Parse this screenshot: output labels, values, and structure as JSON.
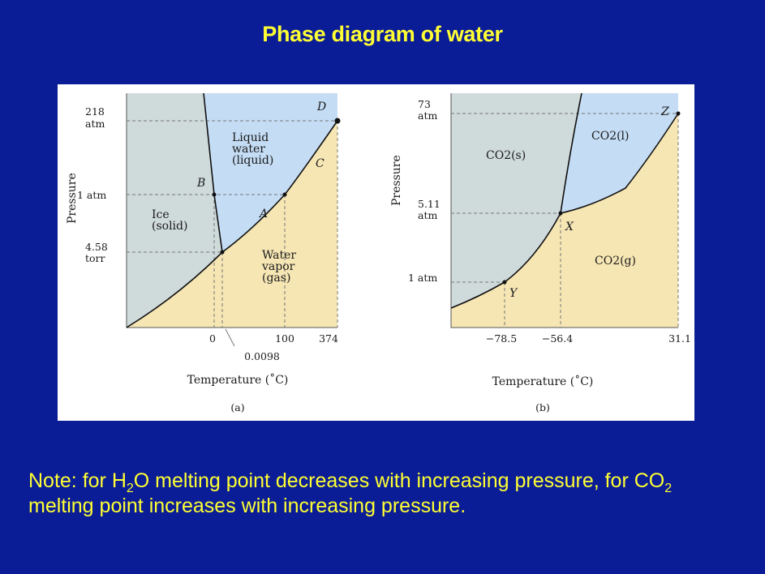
{
  "title": "Phase diagram of water",
  "colors": {
    "background": "#0a1c96",
    "title": "#ffff33",
    "solid_region": "#cfdadb",
    "liquid_region": "#c4dcf4",
    "gas_region": "#f6e6b4"
  },
  "diagram_a": {
    "ylabel": "Pressure",
    "y_ticks": {
      "p218": "218",
      "p218_unit": "atm",
      "p1": "1 atm",
      "p458": "4.58",
      "p458_unit": "torr"
    },
    "x_ticks": {
      "t0": "0",
      "t100": "100",
      "t374": "374",
      "t00098": "0.0098"
    },
    "xlabel": "Temperature (˚C)",
    "caption": "(a)",
    "regions": {
      "liquid": [
        "Liquid",
        "water",
        "(liquid)"
      ],
      "solid": [
        "Ice",
        "(solid)"
      ],
      "gas": [
        "Water",
        "vapor",
        "(gas)"
      ]
    },
    "points": {
      "A": "A",
      "B": "B",
      "C": "C",
      "D": "D"
    }
  },
  "diagram_b": {
    "ylabel": "Pressure",
    "y_ticks": {
      "p73": "73",
      "p73_unit": "atm",
      "p511": "5.11",
      "p511_unit": "atm",
      "p1": "1 atm"
    },
    "x_ticks": {
      "t785": "−78.5",
      "t564": "−56.4",
      "t311": "31.1"
    },
    "xlabel": "Temperature (˚C)",
    "caption": "(b)",
    "regions": {
      "solid": "CO2(s)",
      "liquid": "CO2(l)",
      "gas": "CO2(g)"
    },
    "points": {
      "X": "X",
      "Y": "Y",
      "Z": "Z"
    }
  },
  "note": {
    "part1": "Note: for H",
    "sub1": "2",
    "part2": "O melting point decreases with increasing pressure, for CO",
    "sub2": "2",
    "part3": " melting point increases with increasing pressure."
  }
}
